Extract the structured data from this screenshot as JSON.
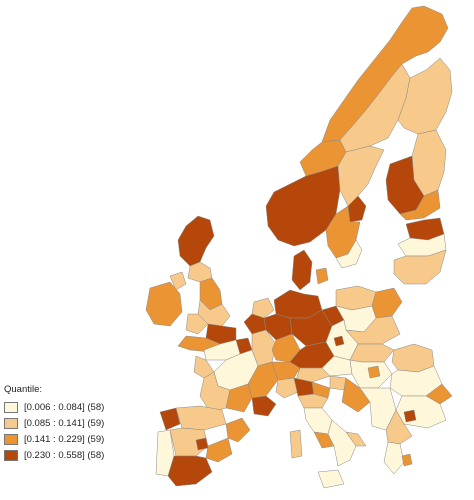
{
  "legend": {
    "title": "Quantile:",
    "items": [
      {
        "label": "[0.006 : 0.084] (58)",
        "color": "#fff7d9"
      },
      {
        "label": "[0.085 : 0.141] (59)",
        "color": "#f7c98b"
      },
      {
        "label": "[0.141 : 0.229] (59)",
        "color": "#eb9434"
      },
      {
        "label": "[0.230 : 0.558] (58)",
        "color": "#b5470a"
      }
    ]
  }
}
